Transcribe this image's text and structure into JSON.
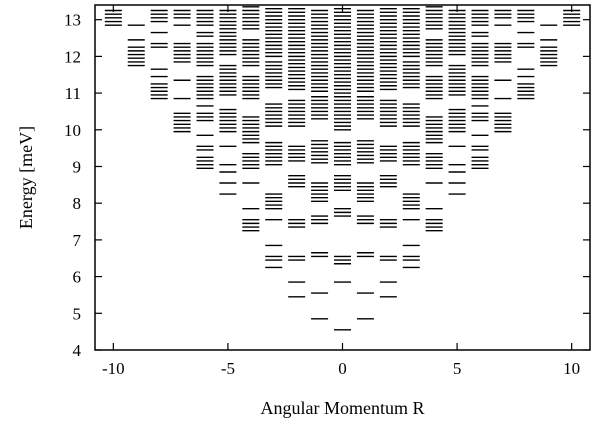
{
  "chart_data": {
    "type": "scatter",
    "marker": "horizontal-dash",
    "title": "",
    "xlabel": "Angular Momentum R",
    "ylabel": "Energy [meV]",
    "xlim": [
      -10.8,
      10.8
    ],
    "ylim": [
      4,
      13.4
    ],
    "x_ticks": [
      -10,
      -5,
      0,
      5,
      10
    ],
    "x_tick_labels": [
      "-10",
      "-5",
      "0",
      "5",
      "10"
    ],
    "y_ticks": [
      4,
      5,
      6,
      7,
      8,
      9,
      10,
      11,
      12,
      13
    ],
    "y_tick_labels": [
      "4",
      "5",
      "6",
      "7",
      "8",
      "9",
      "10",
      "11",
      "12",
      "13"
    ],
    "grid": false,
    "legend": "none",
    "color": "#000000",
    "levels": [
      {
        "R": 0,
        "E": [
          4.55,
          5.85,
          6.35,
          6.45,
          6.55,
          7.65,
          7.75,
          7.85,
          8.35,
          8.45,
          8.55,
          8.65,
          8.75,
          9.05,
          9.15,
          9.25,
          9.35,
          9.45,
          9.55,
          9.65,
          10.0,
          10.1,
          10.2,
          10.3,
          10.4,
          10.5,
          10.6,
          10.7,
          10.8,
          10.9,
          11.0,
          11.1,
          11.2,
          11.3,
          11.4,
          11.5,
          11.6,
          11.7,
          11.8,
          11.9,
          12.0,
          12.1,
          12.2,
          12.3,
          12.4,
          12.5,
          12.6,
          12.7,
          12.8,
          12.9,
          13.0,
          13.1,
          13.2,
          13.3
        ]
      },
      {
        "R": 1,
        "E": [
          4.85,
          5.55,
          6.55,
          6.65,
          7.45,
          7.55,
          7.65,
          8.05,
          8.15,
          8.25,
          8.35,
          8.45,
          8.55,
          9.1,
          9.2,
          9.3,
          9.4,
          9.5,
          9.6,
          9.7,
          10.3,
          10.4,
          10.5,
          10.6,
          10.7,
          10.8,
          10.9,
          11.05,
          11.15,
          11.25,
          11.35,
          11.45,
          11.55,
          11.65,
          11.75,
          11.85,
          11.95,
          12.05,
          12.15,
          12.25,
          12.35,
          12.45,
          12.55,
          12.65,
          12.75,
          12.85,
          12.95,
          13.05,
          13.15,
          13.25
        ]
      },
      {
        "R": -1,
        "E": [
          4.85,
          5.55,
          6.55,
          6.65,
          7.45,
          7.55,
          7.65,
          8.05,
          8.15,
          8.25,
          8.35,
          8.45,
          8.55,
          9.1,
          9.2,
          9.3,
          9.4,
          9.5,
          9.6,
          9.7,
          10.3,
          10.4,
          10.5,
          10.6,
          10.7,
          10.8,
          10.9,
          11.05,
          11.15,
          11.25,
          11.35,
          11.45,
          11.55,
          11.65,
          11.75,
          11.85,
          11.95,
          12.05,
          12.15,
          12.25,
          12.35,
          12.45,
          12.55,
          12.65,
          12.75,
          12.85,
          12.95,
          13.05,
          13.15,
          13.25
        ]
      },
      {
        "R": 2,
        "E": [
          5.45,
          5.85,
          6.45,
          6.55,
          7.35,
          7.45,
          7.55,
          8.45,
          8.55,
          8.65,
          8.75,
          9.15,
          9.25,
          9.35,
          9.45,
          9.55,
          10.1,
          10.2,
          10.3,
          10.4,
          10.5,
          10.6,
          10.7,
          10.8,
          11.1,
          11.2,
          11.3,
          11.4,
          11.5,
          11.6,
          11.7,
          11.8,
          11.9,
          12.0,
          12.1,
          12.2,
          12.3,
          12.4,
          12.5,
          12.6,
          12.7,
          12.8,
          12.9,
          13.0,
          13.1,
          13.2,
          13.3
        ]
      },
      {
        "R": -2,
        "E": [
          5.45,
          5.85,
          6.45,
          6.55,
          7.35,
          7.45,
          7.55,
          8.45,
          8.55,
          8.65,
          8.75,
          9.15,
          9.25,
          9.35,
          9.45,
          9.55,
          10.1,
          10.2,
          10.3,
          10.4,
          10.5,
          10.6,
          10.7,
          10.8,
          11.1,
          11.2,
          11.3,
          11.4,
          11.5,
          11.6,
          11.7,
          11.8,
          11.9,
          12.0,
          12.1,
          12.2,
          12.3,
          12.4,
          12.5,
          12.6,
          12.7,
          12.8,
          12.9,
          13.0,
          13.1,
          13.2,
          13.3
        ]
      },
      {
        "R": 3,
        "E": [
          6.25,
          6.45,
          6.55,
          6.85,
          7.55,
          7.85,
          7.95,
          8.05,
          8.15,
          8.25,
          9.05,
          9.15,
          9.25,
          9.35,
          9.45,
          9.55,
          9.65,
          10.1,
          10.2,
          10.3,
          10.4,
          10.5,
          10.6,
          10.7,
          11.15,
          11.25,
          11.35,
          11.45,
          11.55,
          11.65,
          11.75,
          11.85,
          12.0,
          12.1,
          12.2,
          12.3,
          12.4,
          12.5,
          12.6,
          12.7,
          12.8,
          12.9,
          13.0,
          13.1,
          13.2,
          13.3
        ]
      },
      {
        "R": -3,
        "E": [
          6.25,
          6.45,
          6.55,
          6.85,
          7.55,
          7.85,
          7.95,
          8.05,
          8.15,
          8.25,
          9.05,
          9.15,
          9.25,
          9.35,
          9.45,
          9.55,
          9.65,
          10.1,
          10.2,
          10.3,
          10.4,
          10.5,
          10.6,
          10.7,
          11.15,
          11.25,
          11.35,
          11.45,
          11.55,
          11.65,
          11.75,
          11.85,
          12.0,
          12.1,
          12.2,
          12.3,
          12.4,
          12.5,
          12.6,
          12.7,
          12.8,
          12.9,
          13.0,
          13.1,
          13.2,
          13.3
        ]
      },
      {
        "R": 4,
        "E": [
          7.25,
          7.35,
          7.45,
          7.55,
          7.85,
          8.55,
          8.95,
          9.05,
          9.15,
          9.25,
          9.35,
          9.65,
          9.75,
          9.85,
          9.95,
          10.05,
          10.15,
          10.25,
          10.35,
          10.85,
          10.95,
          11.05,
          11.15,
          11.25,
          11.35,
          11.45,
          11.75,
          11.85,
          11.95,
          12.05,
          12.15,
          12.25,
          12.35,
          12.45,
          12.75,
          12.85,
          12.95,
          13.05,
          13.15,
          13.25,
          13.35
        ]
      },
      {
        "R": -4,
        "E": [
          7.25,
          7.35,
          7.45,
          7.55,
          7.85,
          8.55,
          8.95,
          9.05,
          9.15,
          9.25,
          9.35,
          9.65,
          9.75,
          9.85,
          9.95,
          10.05,
          10.15,
          10.25,
          10.35,
          10.85,
          10.95,
          11.05,
          11.15,
          11.25,
          11.35,
          11.45,
          11.75,
          11.85,
          11.95,
          12.05,
          12.15,
          12.25,
          12.35,
          12.45,
          12.75,
          12.85,
          12.95,
          13.05,
          13.15,
          13.25,
          13.35
        ]
      },
      {
        "R": 5,
        "E": [
          8.25,
          8.55,
          8.85,
          9.05,
          9.55,
          9.95,
          10.05,
          10.15,
          10.25,
          10.35,
          10.45,
          10.55,
          10.95,
          11.05,
          11.15,
          11.25,
          11.35,
          11.45,
          11.55,
          11.65,
          11.75,
          12.05,
          12.15,
          12.25,
          12.35,
          12.45,
          12.55,
          12.65,
          12.75,
          12.85,
          12.95,
          13.05,
          13.15,
          13.25
        ]
      },
      {
        "R": -5,
        "E": [
          8.25,
          8.55,
          8.85,
          9.05,
          9.55,
          9.95,
          10.05,
          10.15,
          10.25,
          10.35,
          10.45,
          10.55,
          10.95,
          11.05,
          11.15,
          11.25,
          11.35,
          11.45,
          11.55,
          11.65,
          11.75,
          12.05,
          12.15,
          12.25,
          12.35,
          12.45,
          12.55,
          12.65,
          12.75,
          12.85,
          12.95,
          13.05,
          13.15,
          13.25
        ]
      },
      {
        "R": 6,
        "E": [
          8.95,
          9.05,
          9.15,
          9.25,
          9.45,
          9.55,
          9.85,
          10.25,
          10.35,
          10.45,
          10.65,
          10.85,
          10.95,
          11.05,
          11.15,
          11.25,
          11.35,
          11.45,
          11.75,
          11.85,
          11.95,
          12.05,
          12.15,
          12.25,
          12.35,
          12.55,
          12.65,
          12.85,
          12.95,
          13.05,
          13.15,
          13.25
        ]
      },
      {
        "R": -6,
        "E": [
          8.95,
          9.05,
          9.15,
          9.25,
          9.45,
          9.55,
          9.85,
          10.25,
          10.35,
          10.45,
          10.65,
          10.85,
          10.95,
          11.05,
          11.15,
          11.25,
          11.35,
          11.45,
          11.75,
          11.85,
          11.95,
          12.05,
          12.15,
          12.25,
          12.35,
          12.55,
          12.65,
          12.85,
          12.95,
          13.05,
          13.15,
          13.25
        ]
      },
      {
        "R": 7,
        "E": [
          9.95,
          10.05,
          10.15,
          10.25,
          10.35,
          10.45,
          10.85,
          11.35,
          11.85,
          11.95,
          12.05,
          12.15,
          12.25,
          12.35,
          12.85,
          13.05,
          13.15,
          13.25
        ]
      },
      {
        "R": -7,
        "E": [
          9.95,
          10.05,
          10.15,
          10.25,
          10.35,
          10.45,
          10.85,
          11.35,
          11.85,
          11.95,
          12.05,
          12.15,
          12.25,
          12.35,
          12.85,
          13.05,
          13.15,
          13.25
        ]
      },
      {
        "R": 8,
        "E": [
          10.85,
          10.95,
          11.05,
          11.15,
          11.25,
          11.45,
          11.65,
          12.25,
          12.35,
          12.65,
          12.95,
          13.05,
          13.15,
          13.25
        ]
      },
      {
        "R": -8,
        "E": [
          10.85,
          10.95,
          11.05,
          11.15,
          11.25,
          11.45,
          11.65,
          12.25,
          12.35,
          12.65,
          12.95,
          13.05,
          13.15,
          13.25
        ]
      },
      {
        "R": 9,
        "E": [
          11.75,
          11.85,
          11.95,
          12.05,
          12.15,
          12.25,
          12.45,
          12.85
        ]
      },
      {
        "R": -9,
        "E": [
          11.75,
          11.85,
          11.95,
          12.05,
          12.15,
          12.25,
          12.45,
          12.85
        ]
      },
      {
        "R": 10,
        "E": [
          12.85,
          12.95,
          13.05,
          13.15,
          13.25
        ]
      },
      {
        "R": -10,
        "E": [
          12.85,
          12.95,
          13.05,
          13.15,
          13.25
        ]
      }
    ]
  }
}
